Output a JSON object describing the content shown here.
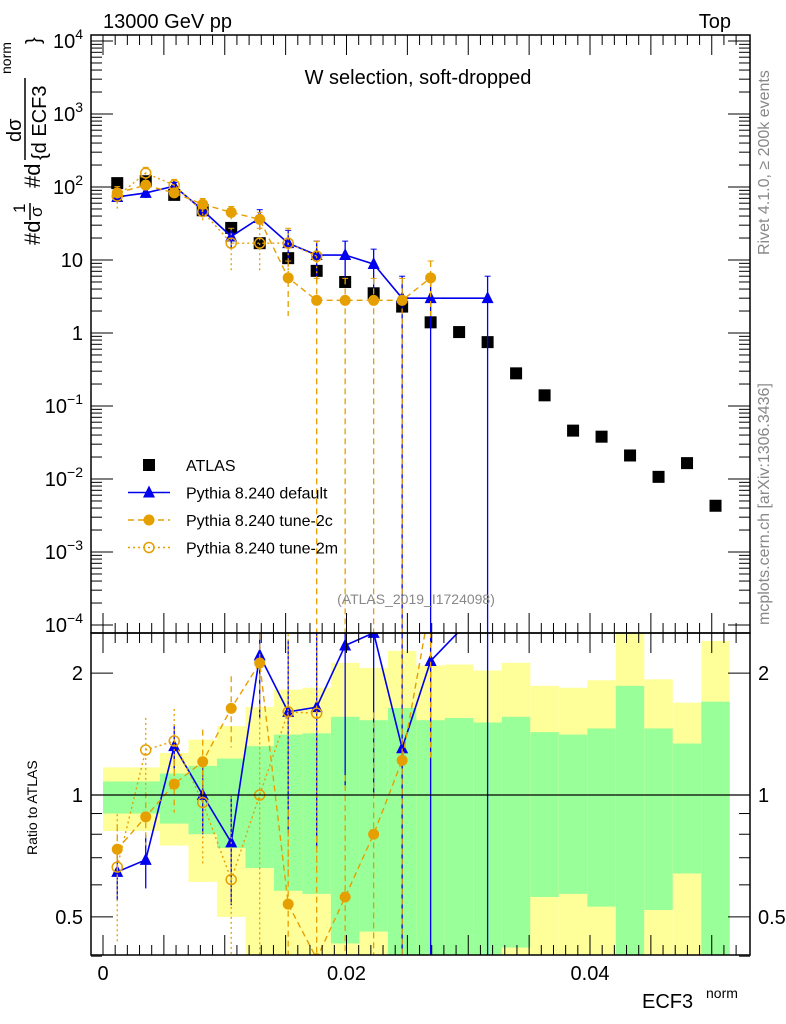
{
  "chart_data": [
    {
      "type": "scatter",
      "title": "W selection, soft-dropped",
      "header_left": "13000 GeV pp",
      "header_right": "Top",
      "side_label_top": "Rivet 4.1.0, ≥ 200k events",
      "side_label_bottom": "mcplots.cern.ch [arXiv:1306.3436]",
      "analysis_label": "(ATLAS_2019_I1724098)",
      "ylabel": "#d1/σ #d dσ/{d ECF3^norm}",
      "ylabel_parts": {
        "a": "#d",
        "b": "1",
        "c": "σ",
        "d": "#d",
        "e": "dσ",
        "f": "{d ECF3",
        "g": "norm",
        "h": "}"
      },
      "yscale": "log",
      "ylim": [
        0.0001,
        10000
      ],
      "ytick_labels": [
        {
          "v": 10000,
          "base": "10",
          "exp": "4"
        },
        {
          "v": 1000,
          "base": "10",
          "exp": "3"
        },
        {
          "v": 100,
          "base": "10",
          "exp": "2"
        },
        {
          "v": 10,
          "base": "10",
          "exp": ""
        },
        {
          "v": 1,
          "base": "1",
          "exp": ""
        },
        {
          "v": 0.1,
          "base": "10",
          "exp": "−1"
        },
        {
          "v": 0.01,
          "base": "10",
          "exp": "−2"
        },
        {
          "v": 0.001,
          "base": "10",
          "exp": "−3"
        },
        {
          "v": 0.0001,
          "base": "10",
          "exp": "−4"
        }
      ],
      "xlim": [
        -0.001,
        0.0532
      ],
      "x": [
        0.00117,
        0.00351,
        0.00585,
        0.00819,
        0.01053,
        0.01287,
        0.01521,
        0.01755,
        0.01989,
        0.02223,
        0.02457,
        0.02691,
        0.02925,
        0.03159,
        0.03393,
        0.03627,
        0.03861,
        0.04095,
        0.04329,
        0.04563,
        0.04797,
        0.05031
      ],
      "bin_width": 0.00234,
      "legend_position": "middle-left",
      "series": [
        {
          "name": "ATLAS",
          "marker": "square",
          "color": "#000000",
          "values": [
            113,
            120,
            78,
            48,
            27.5,
            17,
            10.6,
            7.1,
            5.0,
            3.5,
            2.3,
            1.4,
            1.03,
            0.75,
            0.28,
            0.14,
            0.046,
            0.038,
            0.021,
            0.0107,
            0.0165,
            0.0043
          ]
        },
        {
          "name": "Pythia 8.240 default",
          "marker": "triangle",
          "color": "#0000ee",
          "line": "solid",
          "values": [
            73,
            83,
            103,
            48,
            21,
            37.6,
            17,
            11.7,
            11.7,
            8.8,
            3.0,
            3.0,
            null,
            3.0
          ],
          "rel_err": [
            0.15,
            0.15,
            0.12,
            0.2,
            0.3,
            0.3,
            0.5,
            0.55,
            0.55,
            0.6,
            1.0,
            1.0,
            null,
            1.0
          ]
        },
        {
          "name": "Pythia 8.240 tune-2c",
          "marker": "circle",
          "color": "#e69f00",
          "line": "dashed",
          "values": [
            83,
            106,
            83,
            58,
            45,
            36,
            5.7,
            2.8,
            2.8,
            2.8,
            2.8,
            5.7
          ],
          "rel_err": [
            0.15,
            0.15,
            0.15,
            0.2,
            0.2,
            0.25,
            0.7,
            1.0,
            1.0,
            1.0,
            1.0,
            0.7
          ]
        },
        {
          "name": "Pythia 8.240 tune-2m",
          "marker": "open-circle",
          "color": "#e69f00",
          "line": "dotted",
          "values": [
            75,
            155,
            106,
            46,
            17,
            17,
            17,
            11.3
          ],
          "rel_err": [
            0.35,
            0.2,
            0.2,
            0.3,
            0.6,
            0.6,
            0.6,
            0.6
          ]
        }
      ]
    },
    {
      "type": "line",
      "ylabel": "Ratio to ATLAS",
      "yscale": "log",
      "ylim": [
        0.4,
        2.5
      ],
      "ytick_labels": [
        {
          "v": 2,
          "label": "2"
        },
        {
          "v": 1,
          "label": "1"
        },
        {
          "v": 0.5,
          "label": "0.5"
        }
      ],
      "xlabel": "ECF3",
      "xlabel_sup": "norm",
      "xtick_labels": [
        {
          "v": 0,
          "label": "0"
        },
        {
          "v": 0.02,
          "label": "0.02"
        },
        {
          "v": 0.04,
          "label": "0.04"
        }
      ],
      "band_colors": {
        "inner": "#99ff99",
        "outer": "#ffff99"
      },
      "band_inner_up": [
        1.08,
        1.08,
        1.13,
        1.18,
        1.23,
        1.32,
        1.41,
        1.42,
        1.56,
        1.53,
        1.64,
        1.53,
        1.55,
        1.51,
        1.56,
        1.43,
        1.41,
        1.46,
        1.86,
        1.46,
        1.34,
        1.7
      ],
      "band_inner_dn": [
        0.9,
        0.9,
        0.85,
        0.8,
        0.74,
        0.66,
        0.58,
        0.57,
        0.43,
        0.46,
        0.3,
        0.3,
        0.3,
        0.3,
        0.42,
        0.56,
        0.57,
        0.53,
        0.3,
        0.52,
        0.64,
        0.3
      ],
      "band_outer_up": [
        1.17,
        1.17,
        1.27,
        1.37,
        1.48,
        1.65,
        1.82,
        1.84,
        2.12,
        2.06,
        2.27,
        2.09,
        2.1,
        2.03,
        2.12,
        1.86,
        1.84,
        1.92,
        3.0,
        1.93,
        1.69,
        2.4
      ],
      "band_outer_dn": [
        0.815,
        0.815,
        0.75,
        0.61,
        0.5,
        0.3,
        0.3,
        0.3,
        0.3,
        0.3,
        0.3,
        0.45,
        0.43,
        0.47,
        0.3,
        0.3,
        0.3,
        0.3,
        0.3,
        0.3,
        0.3,
        0.3
      ]
    }
  ]
}
